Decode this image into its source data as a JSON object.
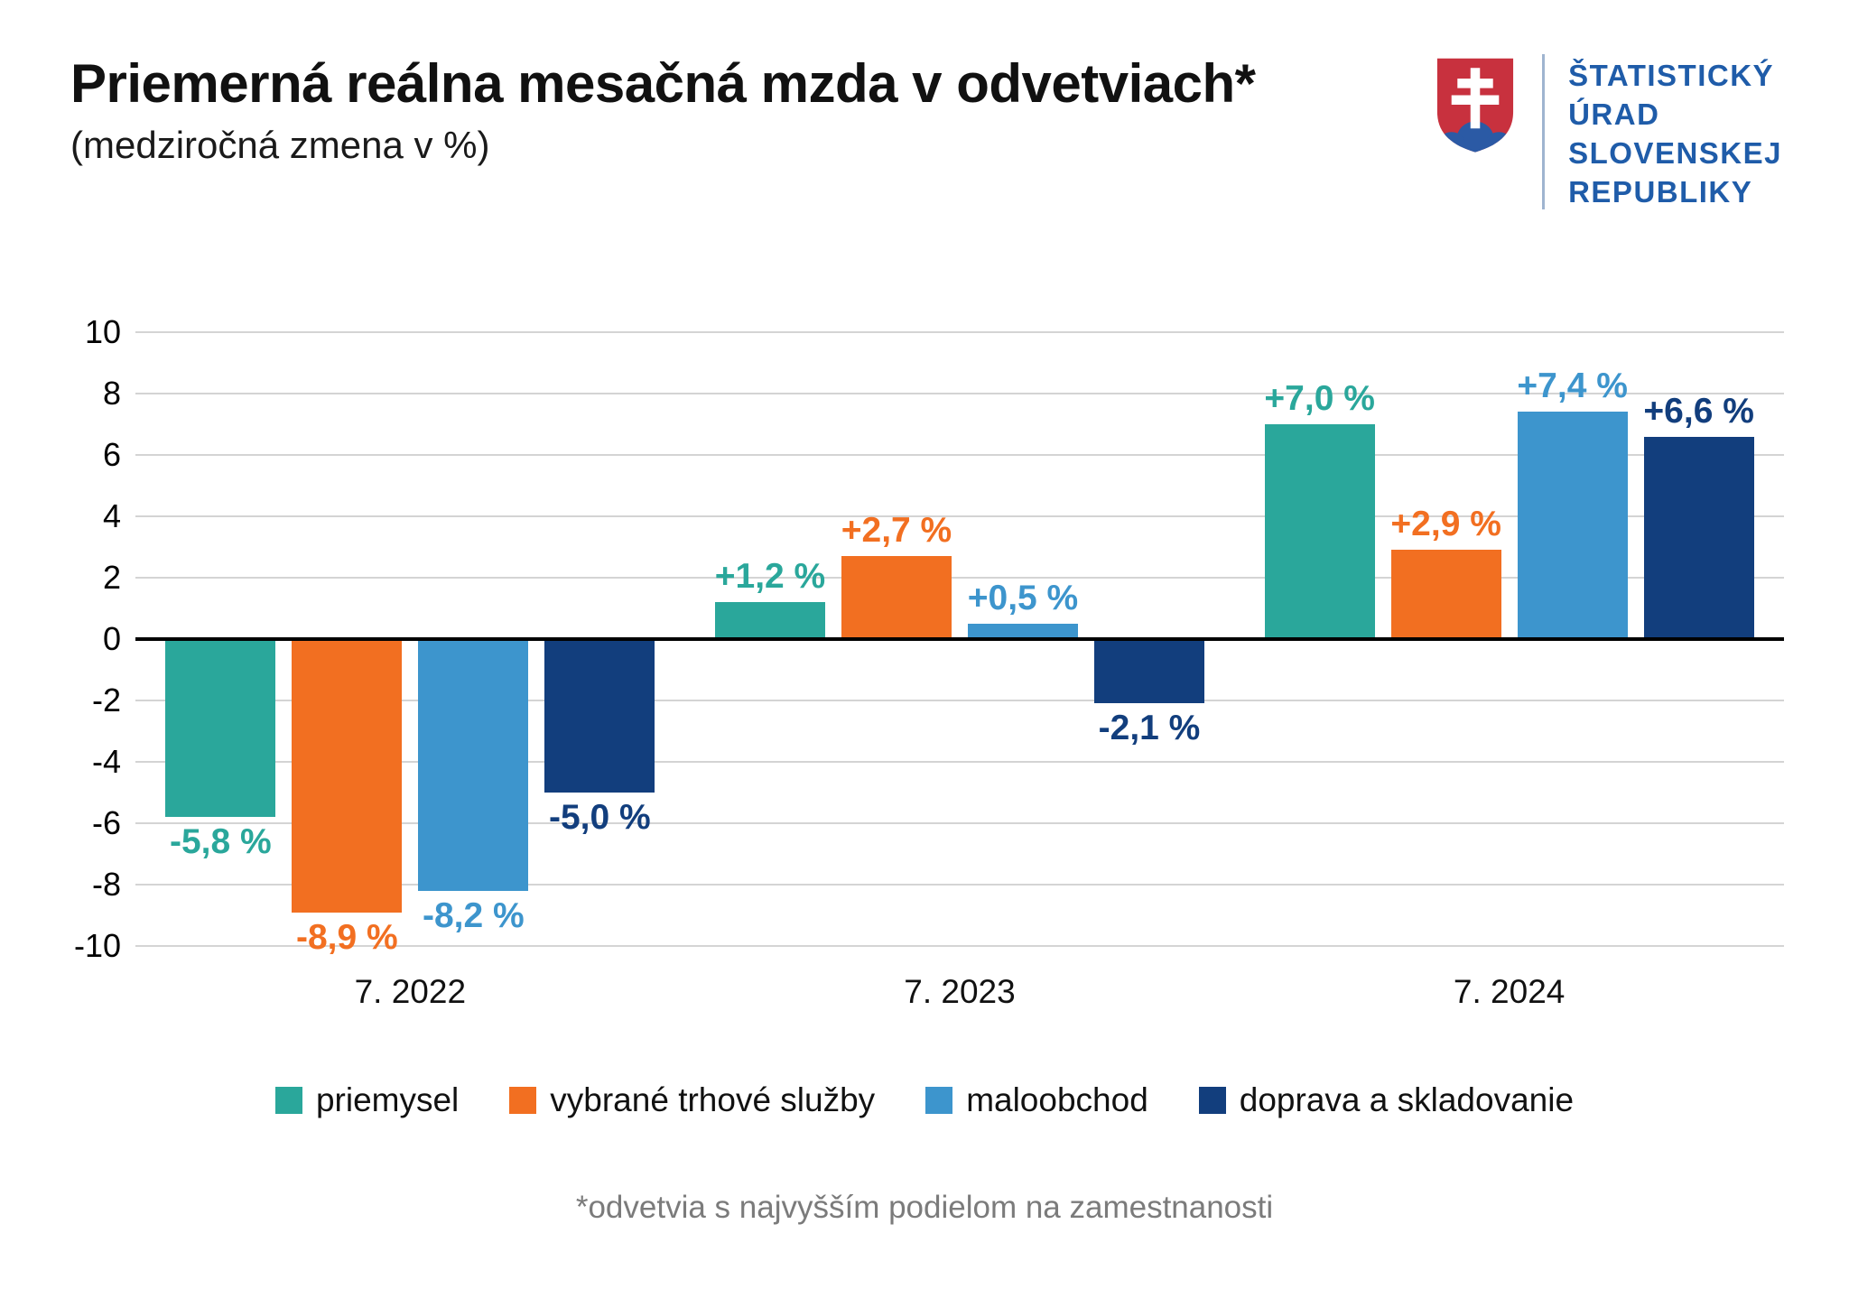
{
  "header": {
    "title": "Priemerná reálna mesačná mzda v odvetviach*",
    "subtitle": "(medziročná zmena v %)"
  },
  "logo": {
    "org_name_lines": [
      "ŠTATISTICKÝ",
      "ÚRAD",
      "SLOVENSKEJ",
      "REPUBLIKY"
    ],
    "colors": {
      "shield_red": "#c8313e",
      "mound_blue": "#2b5aa5",
      "cross_white": "#ffffff",
      "text_blue": "#1f5ca9",
      "divider": "#9fb4d0"
    }
  },
  "chart_data": {
    "type": "bar",
    "title": "Priemerná reálna mesačná mzda v odvetviach*",
    "subtitle": "(medziročná zmena v %)",
    "categories": [
      "7. 2022",
      "7. 2023",
      "7. 2024"
    ],
    "series": [
      {
        "name": "priemysel",
        "color": "#2aa79b",
        "values": [
          -5.8,
          1.2,
          7.0
        ],
        "value_labels": [
          "-5,8 %",
          "+1,2 %",
          "+7,0 %"
        ]
      },
      {
        "name": "vybrané trhové služby",
        "color": "#f26f21",
        "values": [
          -8.9,
          2.7,
          2.9
        ],
        "value_labels": [
          "-8,9 %",
          "+2,7 %",
          "+2,9 %"
        ]
      },
      {
        "name": "maloobchod",
        "color": "#3d95cd",
        "values": [
          -8.2,
          0.5,
          7.4
        ],
        "value_labels": [
          "-8,2 %",
          "+0,5 %",
          "+7,4 %"
        ]
      },
      {
        "name": "doprava a skladovanie",
        "color": "#123e7d",
        "values": [
          -5.0,
          -2.1,
          6.6
        ],
        "value_labels": [
          "-5,0 %",
          "-2,1 %",
          "+6,6 %"
        ]
      }
    ],
    "ylim": [
      -10,
      10
    ],
    "yticks": [
      10,
      8,
      6,
      4,
      2,
      0,
      -2,
      -4,
      -6,
      -8,
      -10
    ],
    "grid": true,
    "legend_position": "bottom"
  },
  "footnote": "*odvetvia s najvyšším podielom na zamestnanosti"
}
